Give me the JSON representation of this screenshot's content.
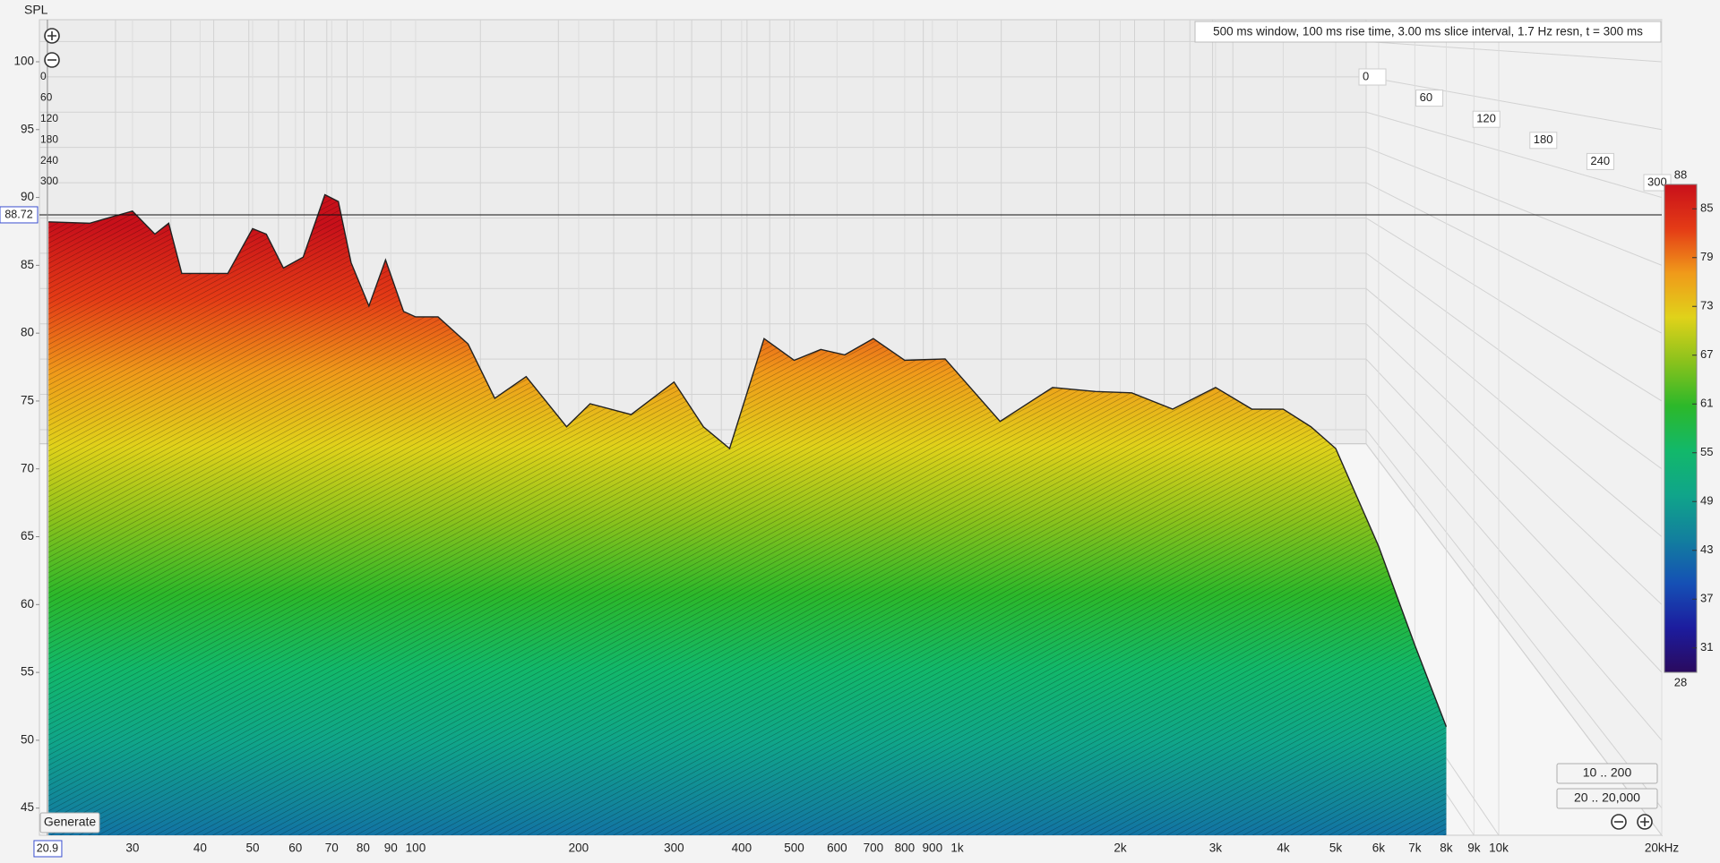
{
  "chart_data": {
    "type": "waterfall",
    "ylabel": "SPL",
    "subtitle": "500 ms window, 100 ms rise time, 3.00 ms slice interval, 1.7 Hz resn, t = 300 ms",
    "x": [
      21,
      25,
      30,
      33,
      35,
      37,
      40,
      45,
      50,
      53,
      57,
      62,
      68,
      72,
      76,
      82,
      88,
      95,
      100,
      110,
      125,
      140,
      160,
      190,
      210,
      250,
      300,
      340,
      380,
      440,
      500,
      560,
      620,
      700,
      800,
      950,
      1200,
      1500,
      1800,
      2100,
      2500,
      3000,
      3500,
      4000,
      4500,
      5000,
      6000,
      7000,
      8000
    ],
    "values": [
      88.2,
      88.1,
      89.0,
      87.3,
      88.1,
      84.4,
      84.4,
      84.4,
      87.7,
      87.3,
      84.8,
      85.6,
      90.2,
      89.7,
      85.2,
      82.0,
      85.4,
      81.6,
      81.2,
      81.2,
      79.2,
      75.2,
      76.8,
      73.1,
      74.8,
      74.0,
      76.4,
      73.1,
      71.5,
      79.6,
      78.0,
      78.8,
      78.4,
      79.6,
      78.0,
      78.1,
      73.5,
      76.0,
      75.7,
      75.6,
      74.4,
      76.0,
      74.4,
      74.4,
      73.1,
      71.5,
      64.3,
      57.0,
      51.0
    ],
    "log_x": true,
    "xlim": [
      20.2,
      20000
    ],
    "xticks": [
      30,
      40,
      50,
      60,
      70,
      80,
      90,
      100,
      200,
      300,
      400,
      500,
      600,
      700,
      800,
      900,
      {
        "value": 1000,
        "label": "1k"
      },
      {
        "value": 2000,
        "label": "2k"
      },
      {
        "value": 3000,
        "label": "3k"
      },
      {
        "value": 4000,
        "label": "4k"
      },
      {
        "value": 5000,
        "label": "5k"
      },
      {
        "value": 6000,
        "label": "6k"
      },
      {
        "value": 7000,
        "label": "7k"
      },
      {
        "value": 8000,
        "label": "8k"
      },
      {
        "value": 9000,
        "label": "9k"
      },
      {
        "value": 10000,
        "label": "10k"
      },
      {
        "value": 20000,
        "label": "20kHz"
      }
    ],
    "ylim": [
      43,
      103.1
    ],
    "yticks": [
      45,
      50,
      55,
      60,
      65,
      70,
      75,
      80,
      85,
      90,
      95,
      100
    ],
    "tlim": [
      0,
      300
    ],
    "tticks": [
      0,
      60,
      120,
      180,
      240,
      300
    ],
    "clim": [
      28,
      88
    ],
    "cticks": [
      31,
      37,
      43,
      49,
      55,
      61,
      67,
      73,
      79,
      85
    ],
    "colormap": [
      "#2a0a5e",
      "#1c1c9e",
      "#1550b5",
      "#127f9e",
      "#10a58a",
      "#12b86a",
      "#2cb82a",
      "#8ac21c",
      "#e0d21a",
      "#f09a1a",
      "#e43b16",
      "#c8101a"
    ],
    "cursor": {
      "x": 20.9,
      "y": 88.72
    }
  },
  "controls": {
    "buttons": [
      "10 .. 200",
      "20 .. 20,000",
      "Generate"
    ]
  }
}
